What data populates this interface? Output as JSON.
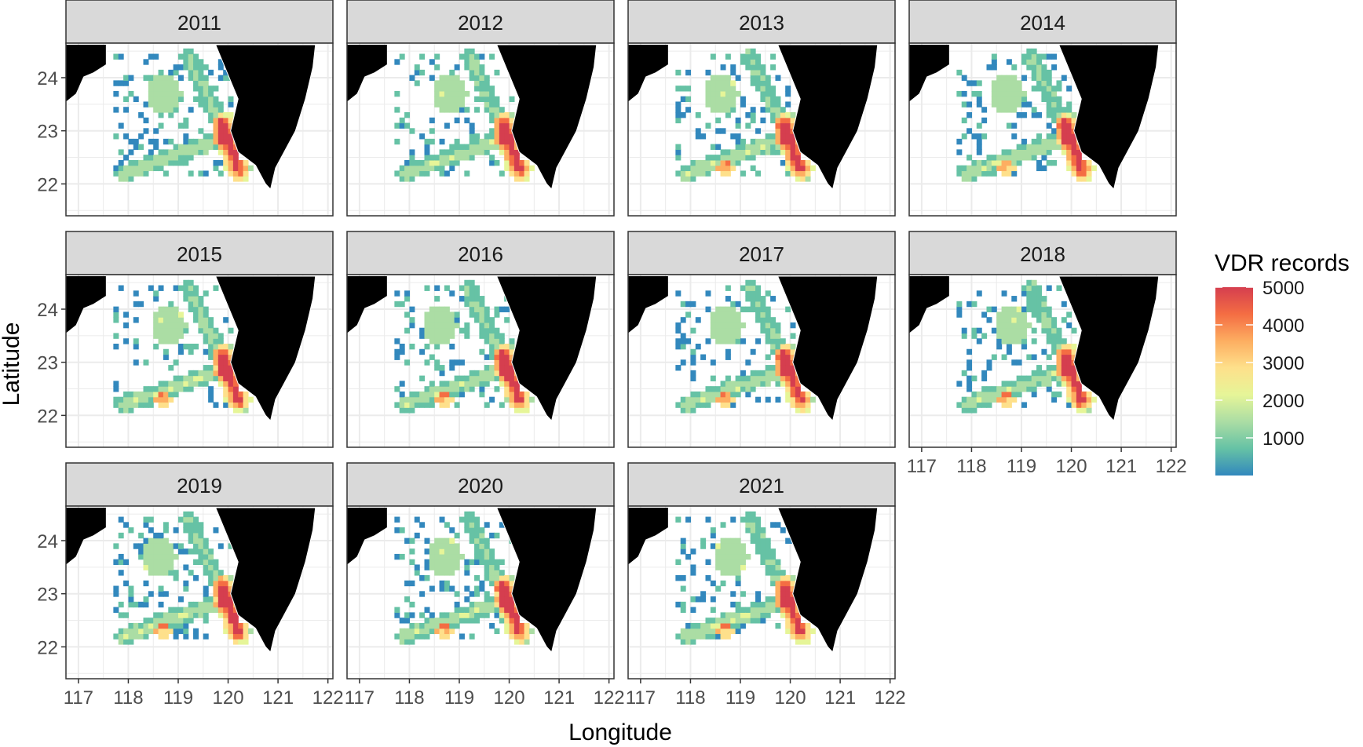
{
  "chart_data": {
    "type": "heatmap",
    "facet_by": "year",
    "panels": [
      {
        "title": "2011"
      },
      {
        "title": "2012"
      },
      {
        "title": "2013"
      },
      {
        "title": "2014"
      },
      {
        "title": "2015"
      },
      {
        "title": "2016"
      },
      {
        "title": "2017"
      },
      {
        "title": "2018"
      },
      {
        "title": "2019"
      },
      {
        "title": "2020"
      },
      {
        "title": "2021"
      }
    ],
    "xlabel": "Longitude",
    "ylabel": "Latitude",
    "x_ticks": [
      117,
      118,
      119,
      120,
      121,
      122
    ],
    "y_ticks": [
      22,
      23,
      24
    ],
    "xlim": [
      116.75,
      122.1
    ],
    "ylim": [
      21.4,
      24.65
    ],
    "grid": true,
    "legend": {
      "title": "VDR records",
      "position": "right",
      "breaks": [
        1000,
        2000,
        3000,
        4000,
        5000
      ],
      "range": [
        0,
        5000
      ],
      "colors": [
        "#3288bd",
        "#66c2a5",
        "#abdda4",
        "#e6f598",
        "#fee08b",
        "#fdae61",
        "#f46d43",
        "#d53e4f"
      ]
    },
    "land_color": "#000000",
    "strip_color": "#d9d9d9",
    "grid_color": "#ebebeb"
  }
}
